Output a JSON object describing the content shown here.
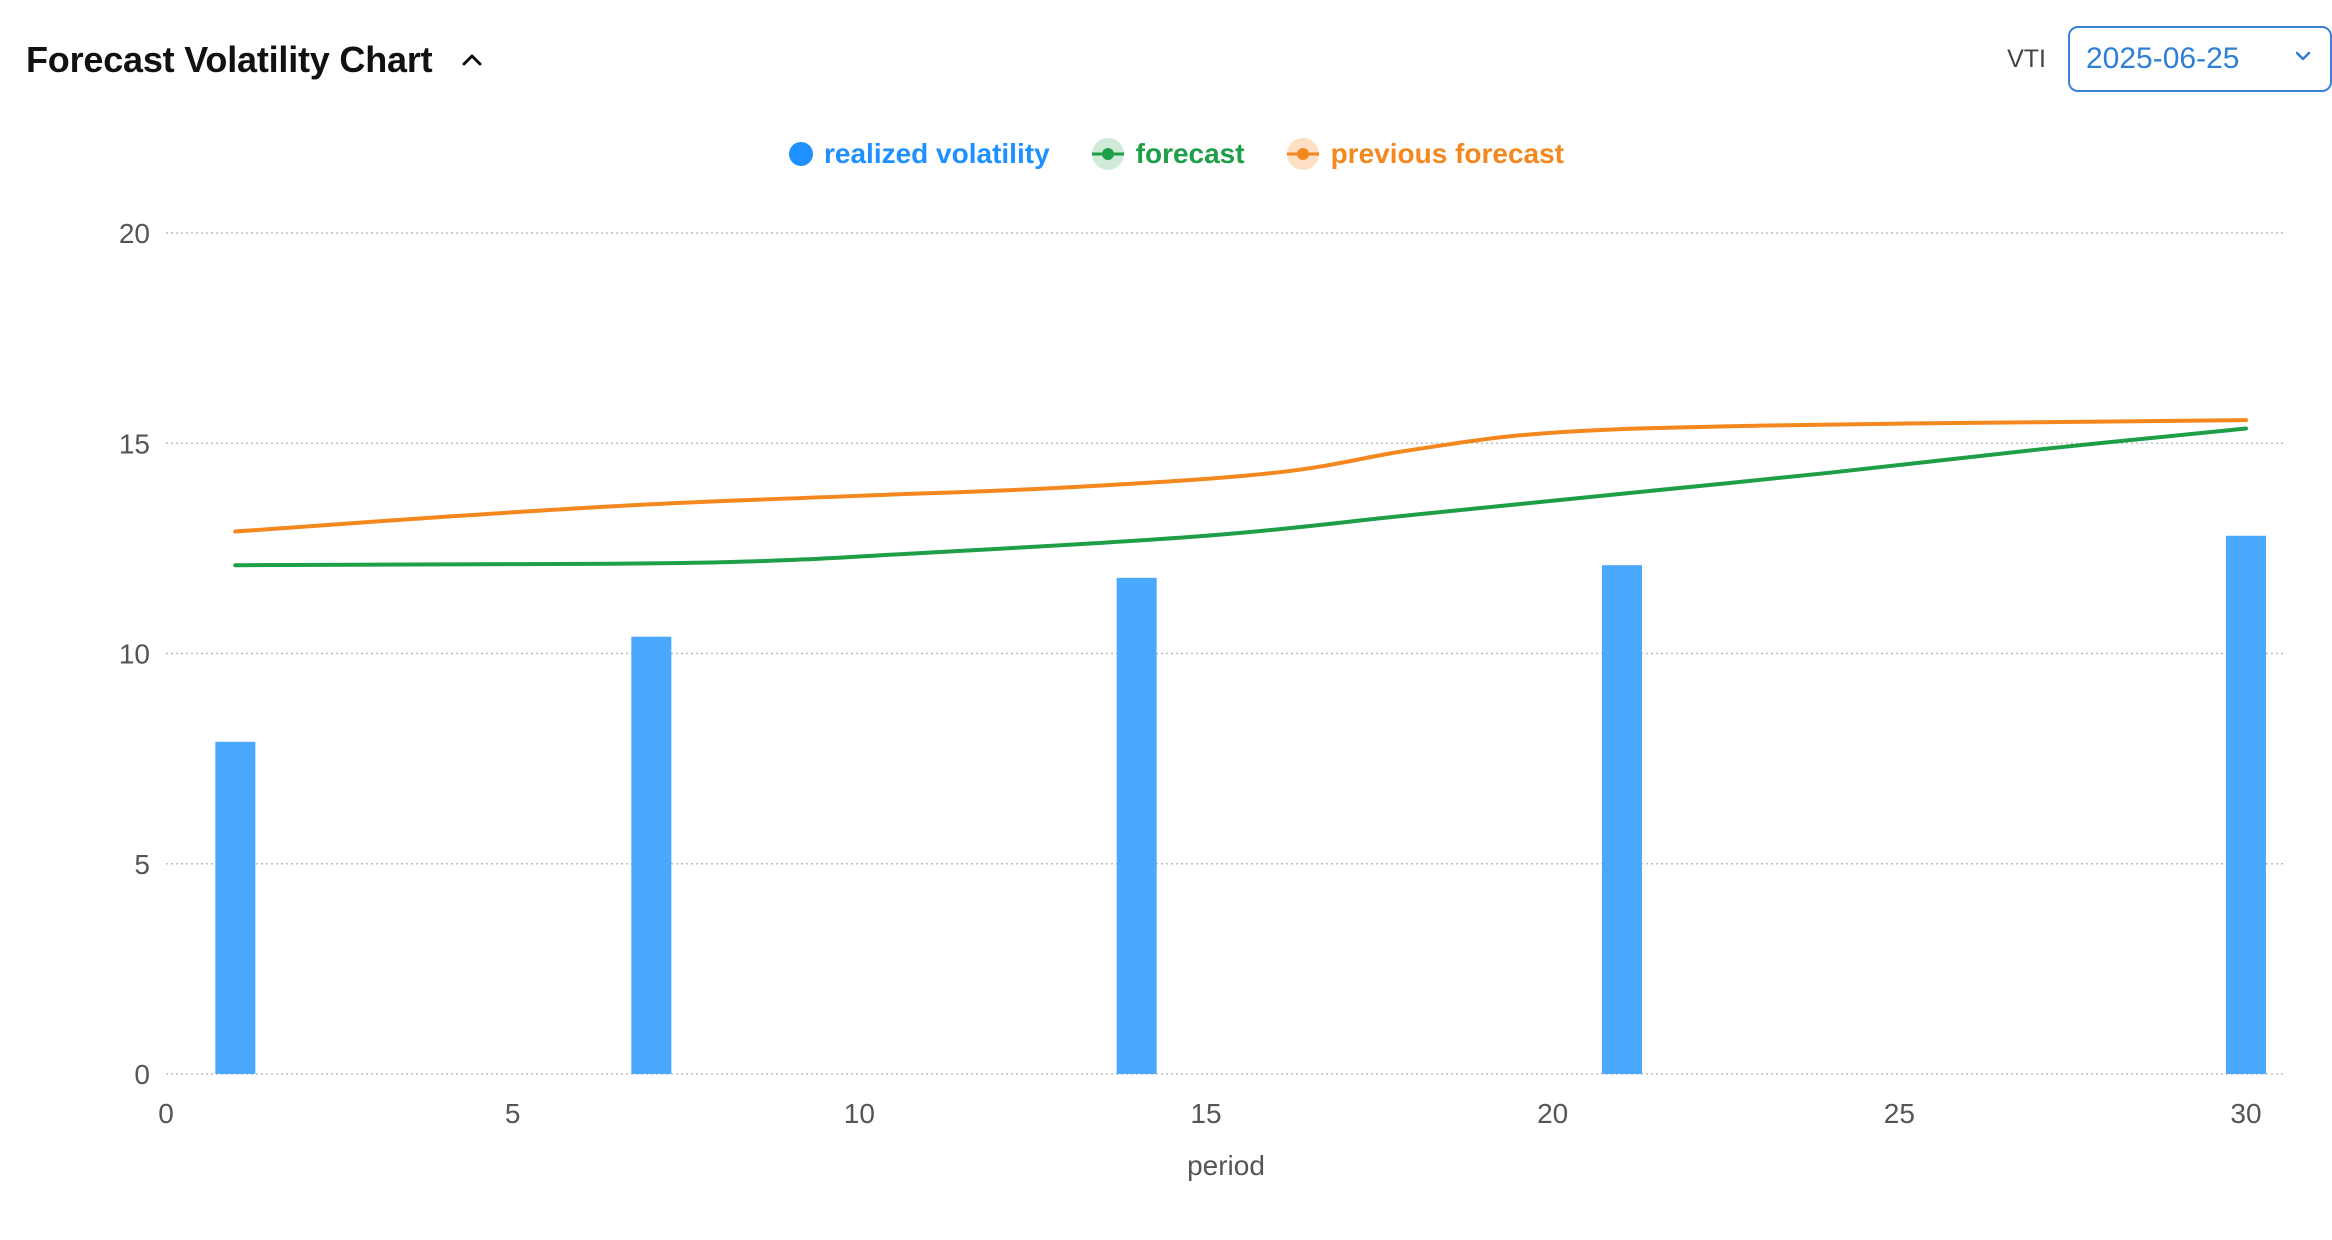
{
  "header": {
    "title": "Forecast Volatility Chart",
    "ticker_label": "VTI",
    "selected_date": "2025-06-25"
  },
  "legend": [
    {
      "label": "realized volatility",
      "color": "#1e90ff",
      "marker": "dot"
    },
    {
      "label": "forecast",
      "color": "#1e9e46",
      "marker": "ring-dot"
    },
    {
      "label": "previous forecast",
      "color": "#f5871f",
      "marker": "ring-dot"
    }
  ],
  "chart_data": {
    "type": "bar",
    "xlabel": "period",
    "ylabel": "",
    "xlim": [
      0,
      30
    ],
    "ylim": [
      0,
      20
    ],
    "x_ticks": [
      0,
      5,
      10,
      15,
      20,
      25,
      30
    ],
    "y_ticks": [
      0,
      5,
      10,
      15,
      20
    ],
    "grid": true,
    "legend_position": "top-center",
    "series": [
      {
        "name": "realized volatility",
        "type": "bar",
        "color": "#4aa8ff",
        "x": [
          1,
          7,
          14,
          21,
          30
        ],
        "y": [
          7.9,
          10.4,
          11.8,
          12.1,
          12.8
        ]
      },
      {
        "name": "forecast",
        "type": "line",
        "color": "#1e9e46",
        "x": [
          1,
          4,
          8,
          11,
          15,
          18,
          21,
          24,
          27,
          30
        ],
        "y": [
          12.1,
          12.12,
          12.17,
          12.4,
          12.8,
          13.3,
          13.8,
          14.3,
          14.85,
          15.35
        ]
      },
      {
        "name": "previous forecast",
        "type": "line",
        "color": "#f5871f",
        "x": [
          1,
          4,
          7,
          10,
          13,
          16,
          18,
          20,
          23,
          27,
          30
        ],
        "y": [
          12.9,
          13.25,
          13.55,
          13.75,
          13.95,
          14.3,
          14.85,
          15.25,
          15.42,
          15.5,
          15.55
        ]
      }
    ]
  }
}
